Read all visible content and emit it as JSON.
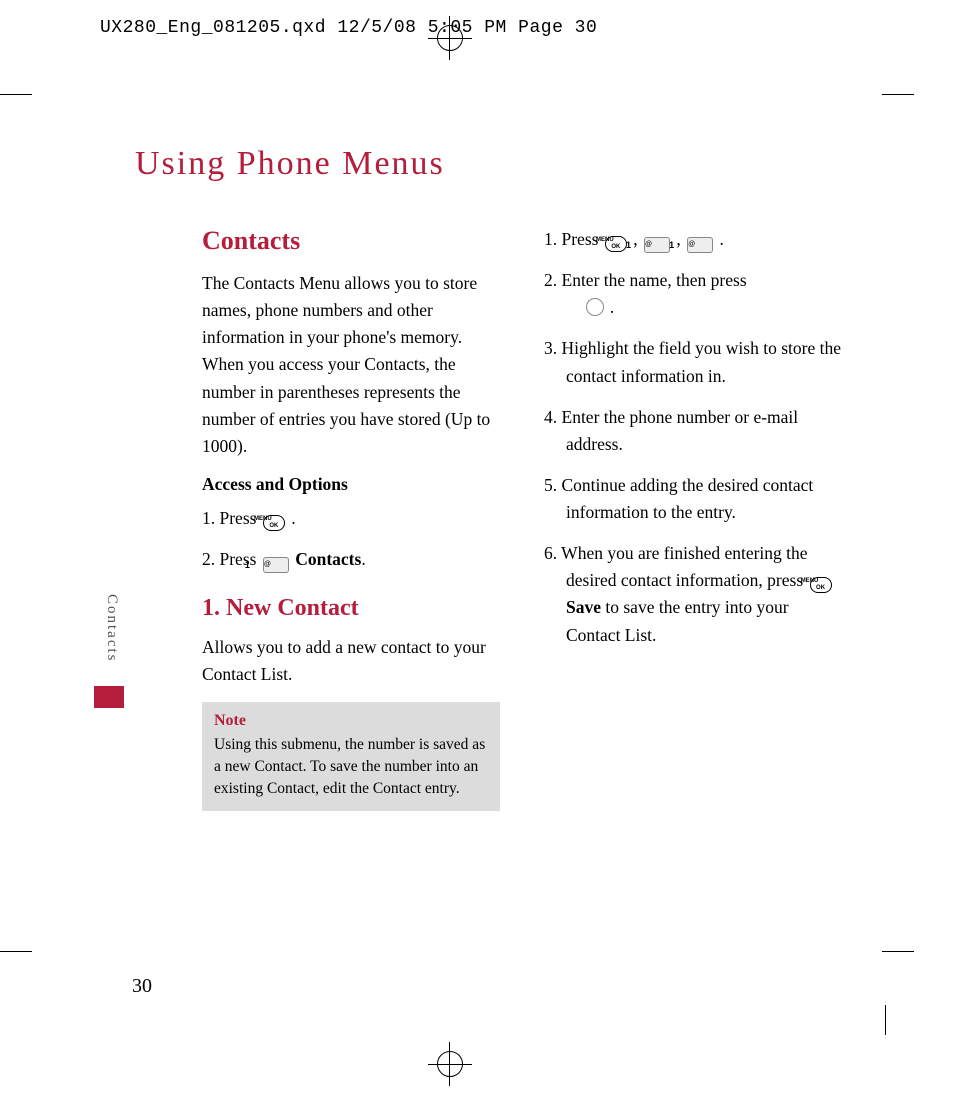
{
  "colors": {
    "accent": "#b41e3c",
    "note_bg": "#dcdcdc",
    "text": "#000000",
    "side_text": "#555555"
  },
  "header": {
    "slug": "UX280_Eng_081205.qxd  12/5/08  5:05 PM  Page 30"
  },
  "page": {
    "title": "Using Phone Menus",
    "side_tab": "Contacts",
    "number": "30"
  },
  "left": {
    "h_contacts": "Contacts",
    "intro": "The Contacts Menu allows you to store names, phone numbers and other information in your phone's memory. When you access your Contacts, the number in parentheses represents the number of entries you have stored (Up to 1000).",
    "access_head": "Access and Options",
    "access_step1_pre": "1. Press ",
    "access_step1_post": " .",
    "access_step2_pre": "2. Press ",
    "access_step2_bold": "Contacts",
    "access_step2_post": ".",
    "h_new": "1. New Contact",
    "new_intro": "Allows you to add a new contact to your Contact List.",
    "note_title": "Note",
    "note_body": "Using this submenu, the number is saved as a new Contact. To save the number into an existing Contact, edit the Contact entry."
  },
  "right": {
    "s1_pre": "1. Press ",
    "s1_sep": " , ",
    "s1_post": " .",
    "s2_pre": "2. Enter the name, then press ",
    "s2_post": " .",
    "s3": "3. Highlight the field you wish to store the contact information in.",
    "s4": "4. Enter the phone number or e-mail address.",
    "s5": "5. Continue adding the desired contact information to the entry.",
    "s6_pre": "6. When you are finished entering the desired contact information, press ",
    "s6_bold": "Save",
    "s6_post": " to save the entry into your Contact List."
  }
}
